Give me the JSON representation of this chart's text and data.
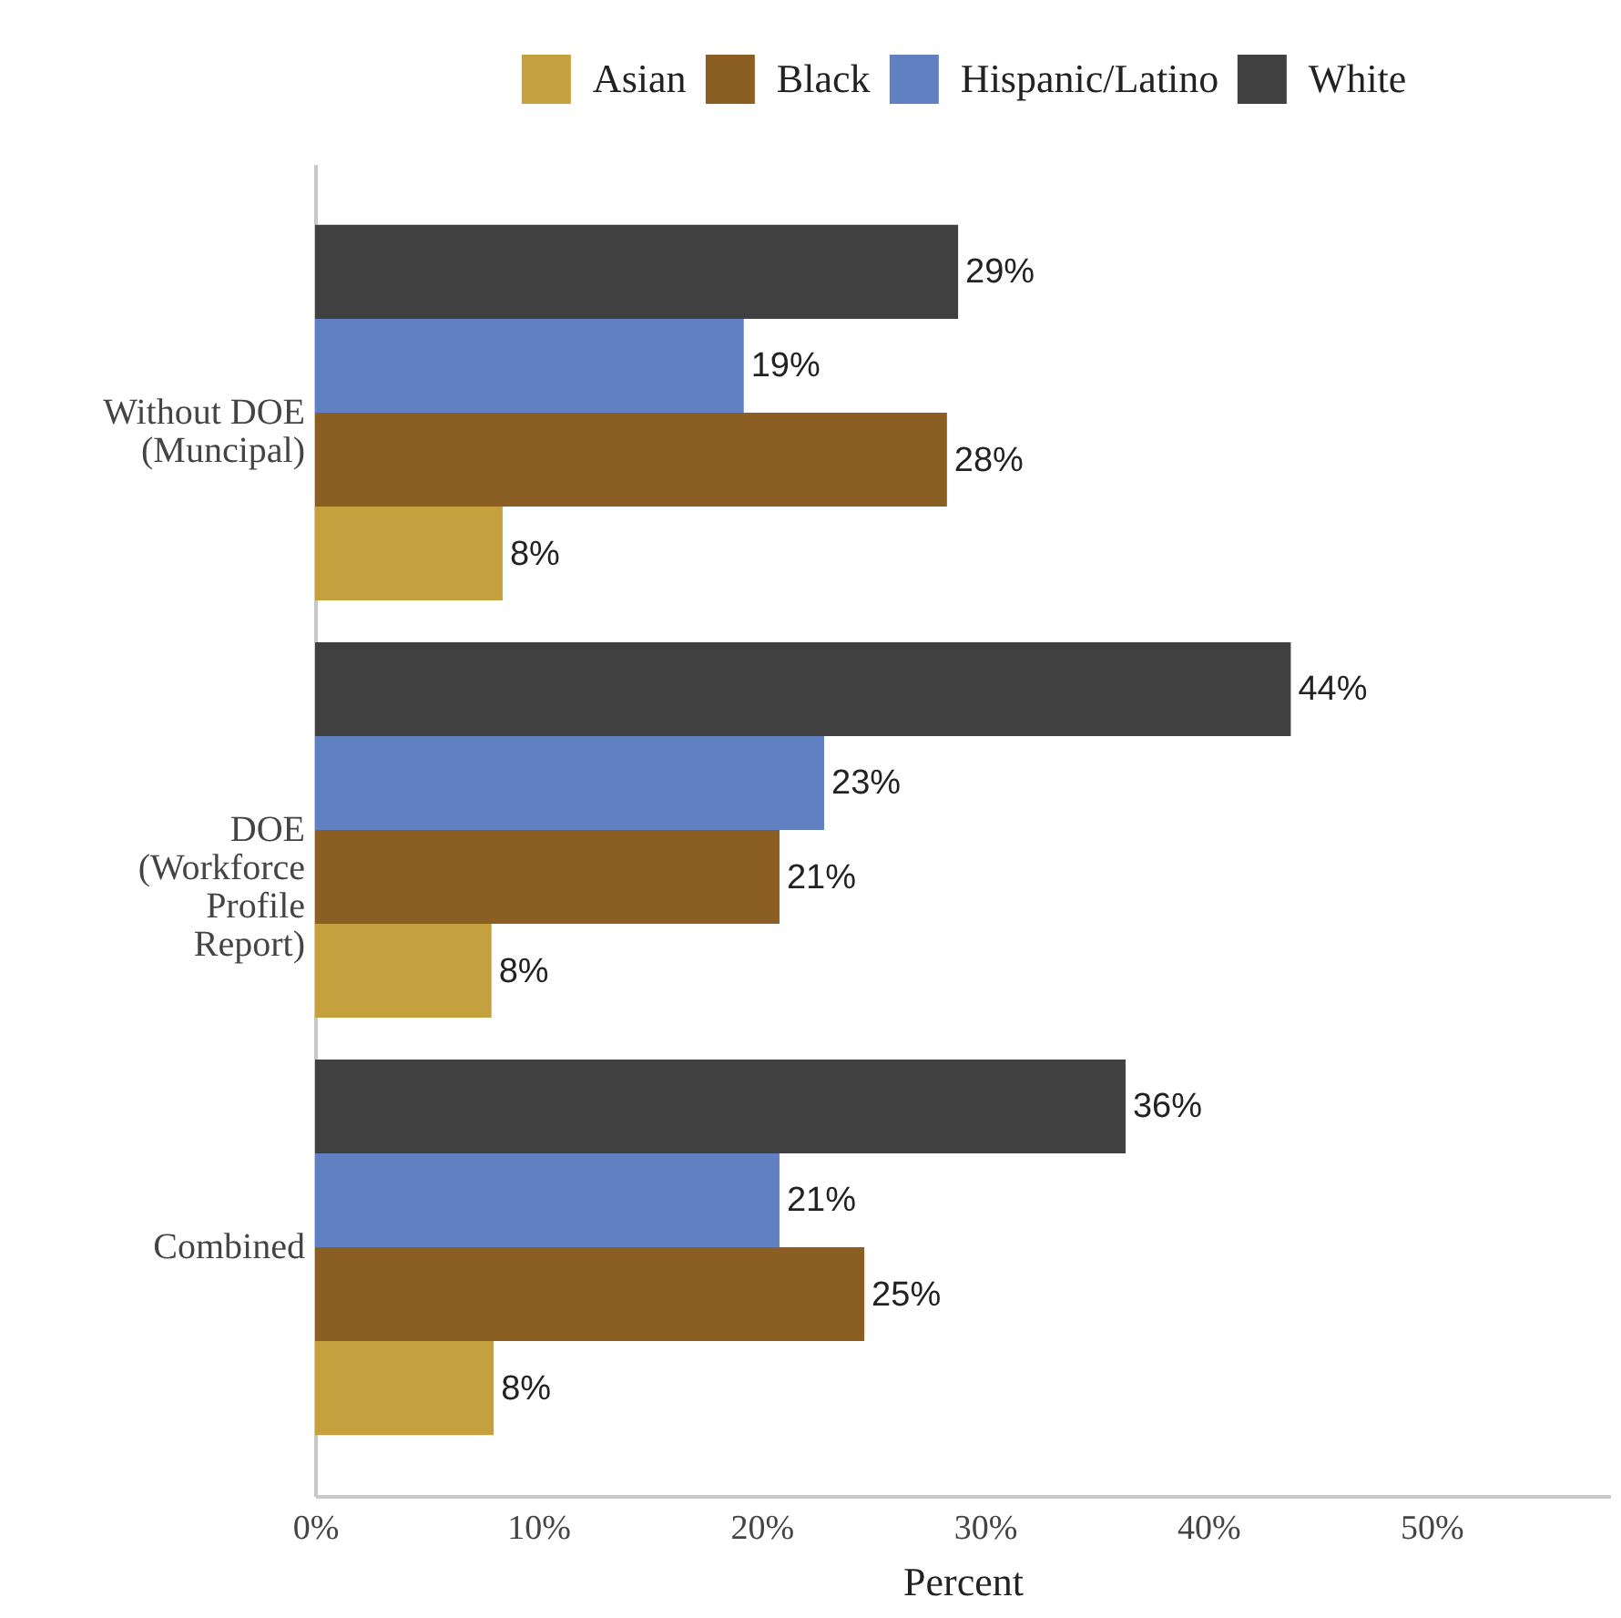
{
  "chart_data": {
    "type": "bar",
    "orientation": "horizontal",
    "legend": "top",
    "grid": false,
    "categories": [
      "Without DOE (Muncipal)",
      "DOE (Workforce Profile Report)",
      "Combined"
    ],
    "series": [
      {
        "name": "Asian",
        "color": "#c4a03f",
        "values": [
          8.4,
          7.9,
          8.0
        ],
        "value_labels": [
          "8%",
          "8%",
          "8%"
        ]
      },
      {
        "name": "Black",
        "color": "#8b5e24",
        "values": [
          28.3,
          20.8,
          24.6
        ],
        "value_labels": [
          "28%",
          "21%",
          "25%"
        ]
      },
      {
        "name": "Hispanic/Latino",
        "color": "#6080c2",
        "values": [
          19.2,
          22.8,
          20.8
        ],
        "value_labels": [
          "19%",
          "23%",
          "21%"
        ]
      },
      {
        "name": "White",
        "color": "#404040",
        "values": [
          28.8,
          43.7,
          36.3
        ],
        "value_labels": [
          "29%",
          "44%",
          "36%"
        ]
      }
    ],
    "xlabel": "Percent",
    "xlim": [
      0,
      58
    ],
    "xticks": [
      {
        "value": 0,
        "label": "0%"
      },
      {
        "value": 10,
        "label": "10%"
      },
      {
        "value": 20,
        "label": "20%"
      },
      {
        "value": 30,
        "label": "30%"
      },
      {
        "value": 40,
        "label": "40%"
      },
      {
        "value": 50,
        "label": "50%"
      }
    ]
  }
}
